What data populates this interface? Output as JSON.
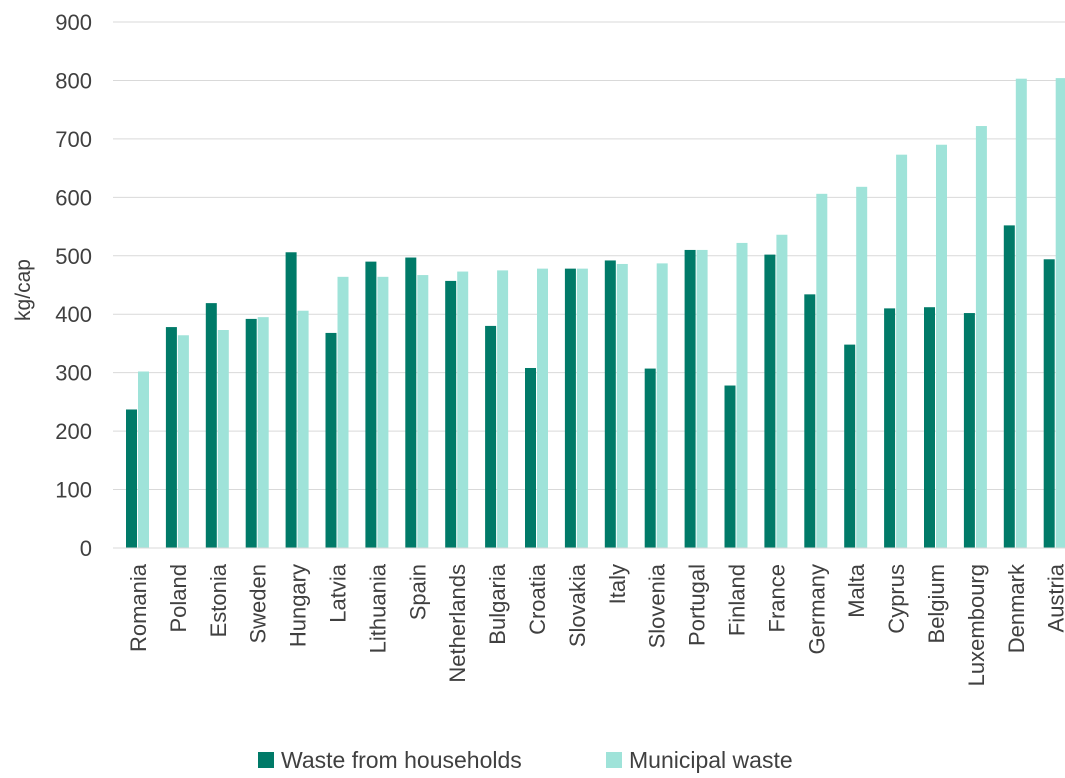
{
  "chart_data": {
    "type": "bar",
    "title": "",
    "xlabel": "",
    "ylabel": "kg/cap",
    "ylim": [
      0,
      900
    ],
    "yticks": [
      0,
      100,
      200,
      300,
      400,
      500,
      600,
      700,
      800,
      900
    ],
    "grid": true,
    "legend_position": "bottom",
    "categories": [
      "Romania",
      "Poland",
      "Estonia",
      "Sweden",
      "Hungary",
      "Latvia",
      "Lithuania",
      "Spain",
      "Netherlands",
      "Bulgaria",
      "Croatia",
      "Slovakia",
      "Italy",
      "Slovenia",
      "Portugal",
      "Finland",
      "France",
      "Germany",
      "Malta",
      "Cyprus",
      "Belgium",
      "Luxembourg",
      "Denmark",
      "Austria"
    ],
    "series": [
      {
        "name": "Waste from households",
        "color": "#007A68",
        "values": [
          237,
          378,
          419,
          392,
          506,
          368,
          490,
          497,
          457,
          380,
          308,
          478,
          492,
          307,
          510,
          278,
          502,
          434,
          348,
          410,
          412,
          402,
          552,
          494
        ]
      },
      {
        "name": "Municipal waste",
        "color": "#9FE3D9",
        "values": [
          302,
          364,
          373,
          395,
          406,
          464,
          464,
          467,
          473,
          475,
          478,
          478,
          486,
          487,
          510,
          522,
          536,
          606,
          618,
          673,
          690,
          722,
          803,
          804
        ]
      }
    ]
  }
}
